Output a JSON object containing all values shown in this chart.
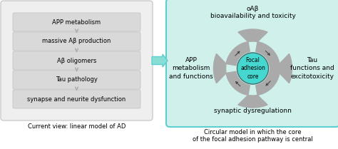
{
  "left_box_color": "#efefef",
  "left_box_border": "#cccccc",
  "right_box_color": "#cff0eb",
  "right_box_border": "#5ecece",
  "linear_steps": [
    "APP metabolism",
    "massive Aβ production",
    "Aβ oligomers",
    "Tau pathology",
    "synapse and neurite dysfunction"
  ],
  "left_caption": "Current view: linear model of AD",
  "right_caption_line1": "Circular model in which the core",
  "right_caption_line2": "of the focal adhesion pathway is central",
  "center_label": "Focal\nadhesion\ncore",
  "top_label_line1": "oAβ",
  "top_label_line2": "bioavailability and toxicity",
  "bottom_label": "synaptic dysregulationn",
  "left_label": "APP\nmetabolism\nand functions",
  "right_label": "Tau\nfunctions and\nexcitotoxicity",
  "arrow_color": "#aaaaaa",
  "step_box_color": "#d9d9d9",
  "circle_color": "#45d8d0",
  "step_text_size": 6.0,
  "caption_text_size": 6.0,
  "label_text_size": 6.5
}
